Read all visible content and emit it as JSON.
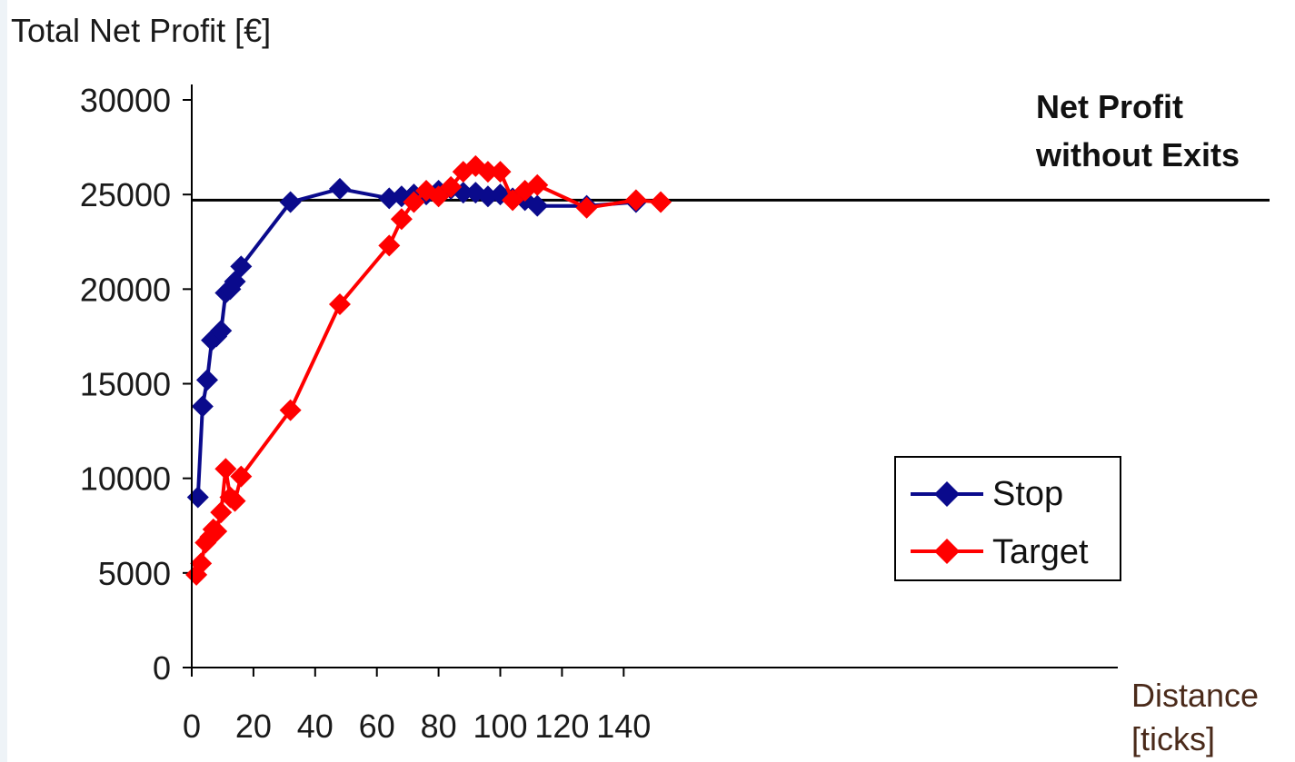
{
  "chart_data": {
    "type": "line",
    "title": "Total Net Profit [€]",
    "xlabel_line1": "Distance",
    "xlabel_line2": "[ticks]",
    "xlim": [
      0,
      155
    ],
    "ylim": [
      0,
      30000
    ],
    "x_ticks": [
      0,
      20,
      40,
      60,
      80,
      100,
      120,
      140
    ],
    "y_ticks": [
      0,
      5000,
      10000,
      15000,
      20000,
      25000,
      30000
    ],
    "grid": false,
    "legend_position": "bottom-right",
    "baseline": {
      "label_line1": "Net Profit",
      "label_line2": "without Exits",
      "value": 24700,
      "color": "#000000"
    },
    "series": [
      {
        "name": "Stop",
        "color": "#0a0a8c",
        "marker": "diamond",
        "x": [
          2,
          3.5,
          5,
          6.5,
          8,
          9.5,
          11,
          12.5,
          14,
          16,
          32,
          48,
          64,
          68,
          72,
          76,
          80,
          84,
          88,
          92,
          96,
          100,
          104,
          108,
          112,
          128,
          144
        ],
        "y": [
          9000,
          13800,
          15200,
          17300,
          17500,
          17800,
          19800,
          20000,
          20400,
          21200,
          24600,
          25300,
          24800,
          24900,
          25000,
          25000,
          25200,
          25300,
          25100,
          25100,
          24900,
          25000,
          24800,
          24700,
          24400,
          24400,
          24600
        ]
      },
      {
        "name": "Target",
        "color": "#ff0000",
        "marker": "diamond",
        "x": [
          1.5,
          3,
          4.5,
          6,
          7,
          8,
          9.5,
          11,
          12.5,
          14,
          16,
          32,
          48,
          64,
          68,
          72,
          76,
          80,
          84,
          88,
          92,
          96,
          100,
          104,
          108,
          112,
          128,
          144,
          152
        ],
        "y": [
          4900,
          5500,
          6600,
          6900,
          7300,
          7200,
          8200,
          10500,
          9000,
          8800,
          10100,
          13600,
          19200,
          22300,
          23700,
          24600,
          25200,
          24900,
          25400,
          26200,
          26500,
          26200,
          26200,
          24700,
          25200,
          25500,
          24300,
          24700,
          24600
        ]
      }
    ]
  }
}
